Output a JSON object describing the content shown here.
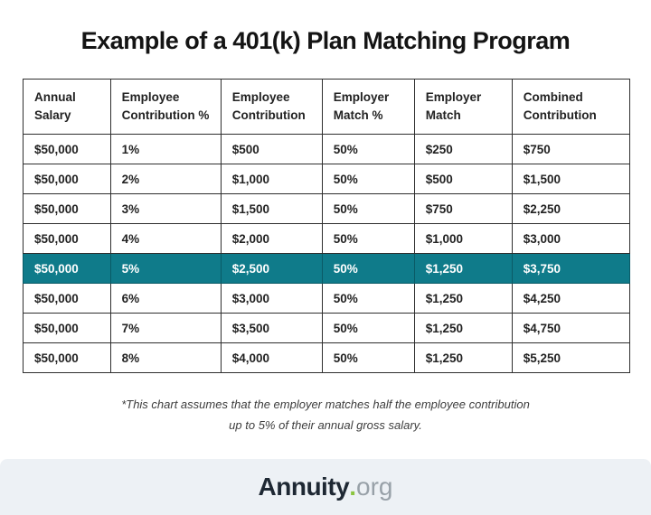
{
  "title": "Example of a 401(k) Plan Matching Program",
  "chart_data": {
    "type": "table",
    "title": "Example of a 401(k) Plan Matching Program",
    "columns": [
      "Annual Salary",
      "Employee Contribution %",
      "Employee Contribution",
      "Employer Match %",
      "Employer Match",
      "Combined Contribution"
    ],
    "rows": [
      [
        "$50,000",
        "1%",
        "$500",
        "50%",
        "$250",
        "$750"
      ],
      [
        "$50,000",
        "2%",
        "$1,000",
        "50%",
        "$500",
        "$1,500"
      ],
      [
        "$50,000",
        "3%",
        "$1,500",
        "50%",
        "$750",
        "$2,250"
      ],
      [
        "$50,000",
        "4%",
        "$2,000",
        "50%",
        "$1,000",
        "$3,000"
      ],
      [
        "$50,000",
        "5%",
        "$2,500",
        "50%",
        "$1,250",
        "$3,750"
      ],
      [
        "$50,000",
        "6%",
        "$3,000",
        "50%",
        "$1,250",
        "$4,250"
      ],
      [
        "$50,000",
        "7%",
        "$3,500",
        "50%",
        "$1,250",
        "$4,750"
      ],
      [
        "$50,000",
        "8%",
        "$4,000",
        "50%",
        "$1,250",
        "$5,250"
      ]
    ],
    "highlighted_row_index": 4,
    "footnote": "*This chart assumes that the employer matches half the employee contribution up to 5% of their annual gross salary."
  },
  "column_widths_percent": [
    14.4,
    18.2,
    16.7,
    15.2,
    16.1,
    19.4
  ],
  "footnote": {
    "line1": "*This chart assumes that the employer matches half the employee contribution",
    "line2": "up to 5% of their annual gross salary."
  },
  "footer": {
    "brand": "Annuity",
    "dot": ".",
    "tld": "org"
  },
  "colors": {
    "highlight": "#0F7B8A",
    "highlight_border": "#0A5A66",
    "table_border": "#2E2E2E",
    "footer_band": "#EDF1F5",
    "logo_dark": "#1E2833",
    "logo_dot": "#8BC53F",
    "logo_gray": "#98A1A8"
  }
}
